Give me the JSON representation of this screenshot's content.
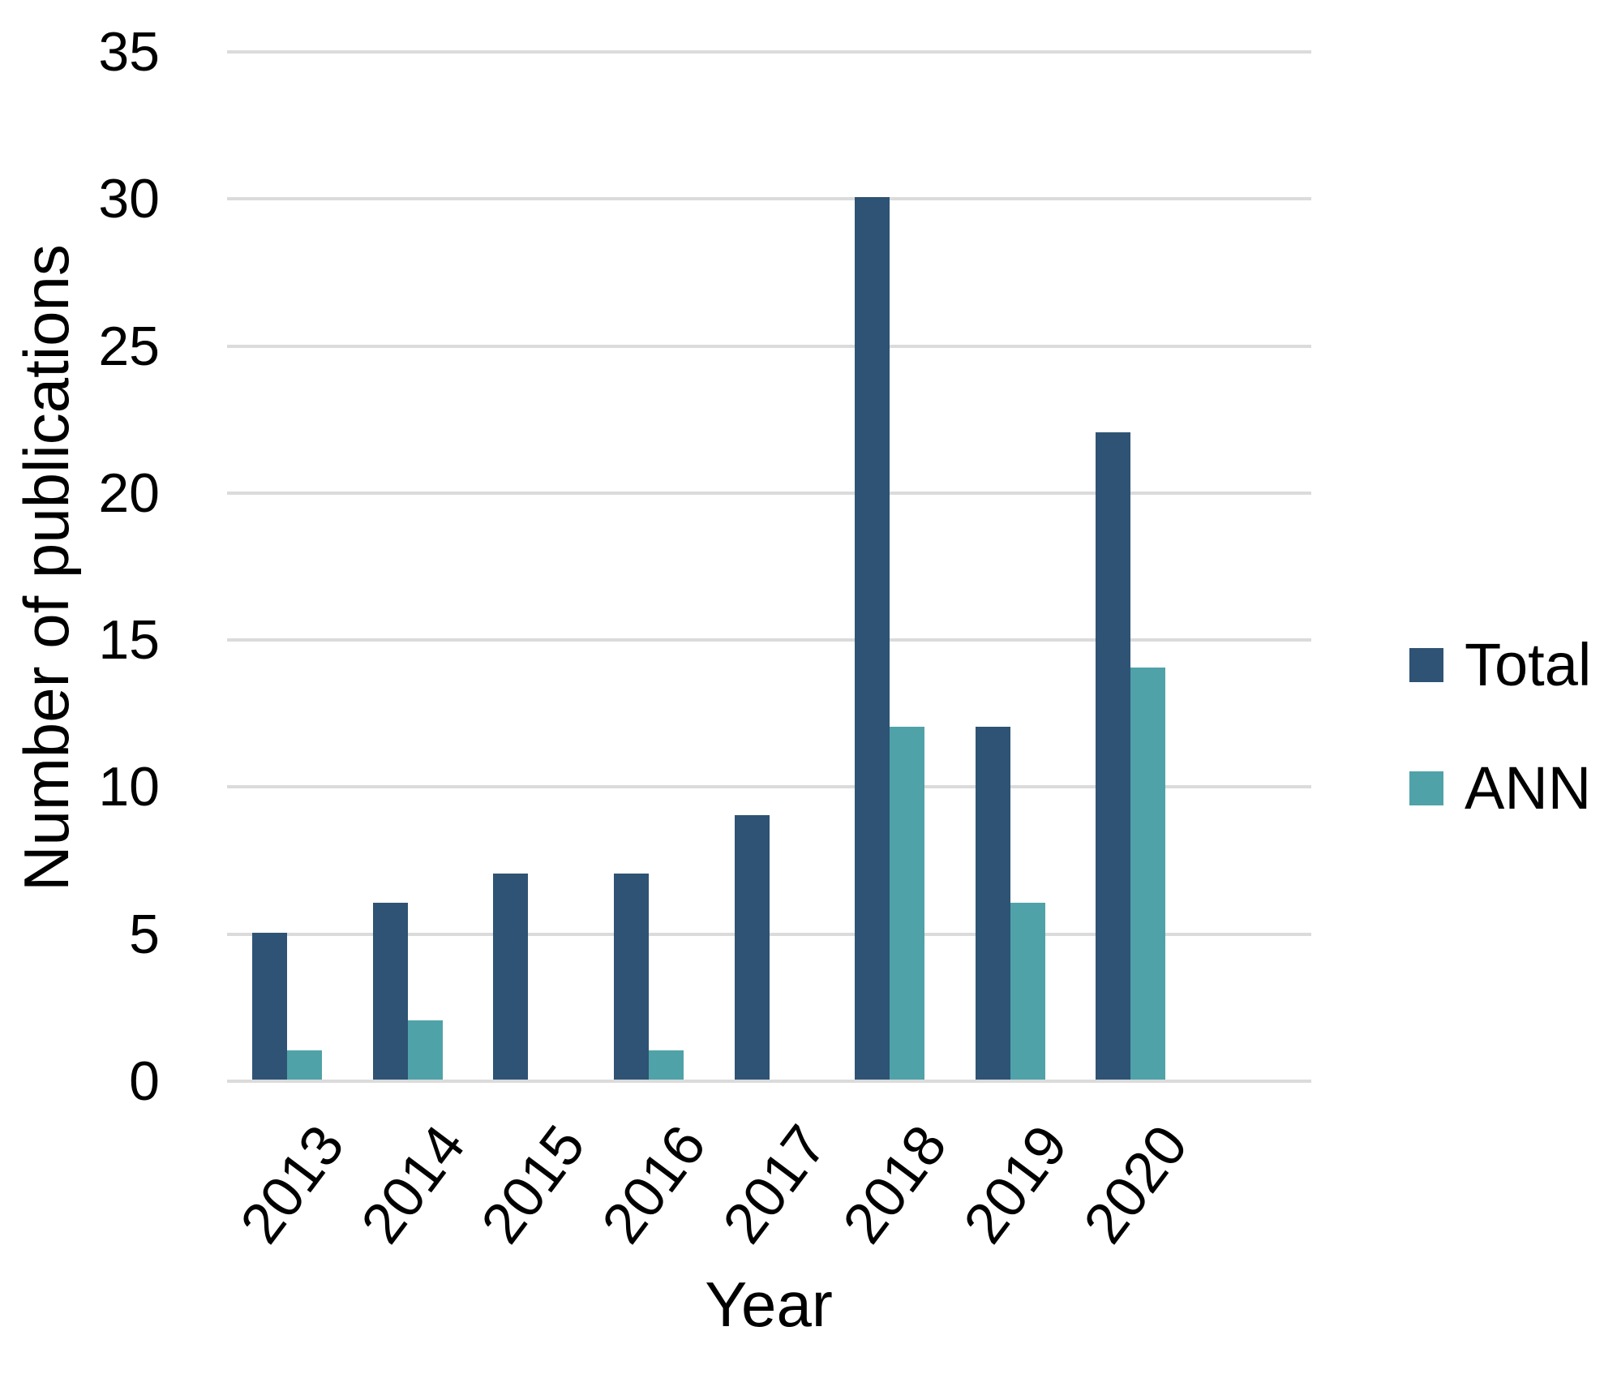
{
  "chart_data": {
    "type": "bar",
    "title": "",
    "xlabel": "Year",
    "ylabel": "Number of publications",
    "categories": [
      "2013",
      "2014",
      "2015",
      "2016",
      "2017",
      "2018",
      "2019",
      "2020"
    ],
    "series": [
      {
        "name": "Total",
        "color": "#2e5374",
        "values": [
          5,
          6,
          7,
          7,
          9,
          30,
          12,
          22
        ]
      },
      {
        "name": "ANN",
        "color": "#4fa2a8",
        "values": [
          1,
          2,
          0,
          1,
          0,
          12,
          6,
          14
        ]
      }
    ],
    "ylim": [
      0,
      35
    ],
    "ytick_step": 5,
    "yticks": [
      "0",
      "5",
      "10",
      "15",
      "20",
      "25",
      "30",
      "35"
    ],
    "grid": "horizontal",
    "gridline_color": "#dbdbdb",
    "legend_position": "right",
    "background": "#ffffff",
    "text_color": "#000000"
  }
}
